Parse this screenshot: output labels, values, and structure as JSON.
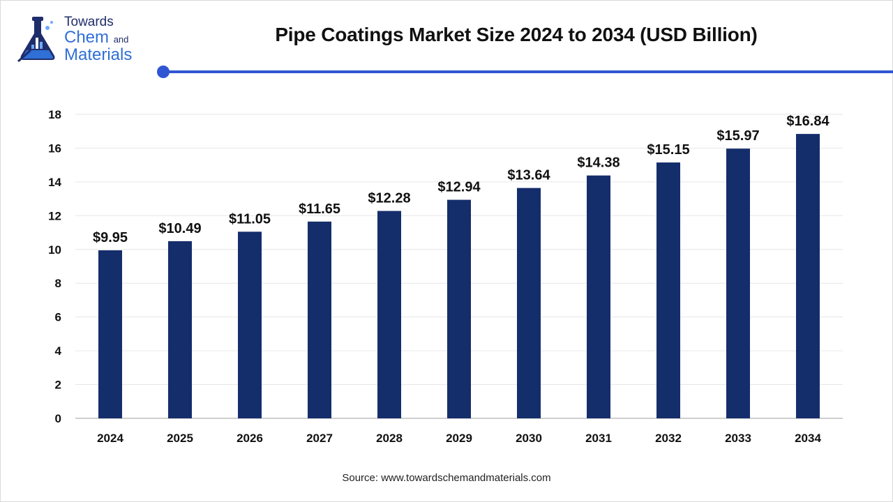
{
  "brand": {
    "line1": "Towards",
    "line2": "Chem",
    "line2_suffix": "and",
    "line3": "Materials",
    "accent_color": "#3056d3",
    "icon": "flask-icon"
  },
  "chart_data": {
    "type": "bar",
    "title": "Pipe Coatings Market Size 2024 to 2034 (USD Billion)",
    "categories": [
      "2024",
      "2025",
      "2026",
      "2027",
      "2028",
      "2029",
      "2030",
      "2031",
      "2032",
      "2033",
      "2034"
    ],
    "values": [
      9.95,
      10.49,
      11.05,
      11.65,
      12.28,
      12.94,
      13.64,
      14.38,
      15.15,
      15.97,
      16.84
    ],
    "data_labels": [
      "$9.95",
      "$10.49",
      "$11.05",
      "$11.65",
      "$12.28",
      "$12.94",
      "$13.64",
      "$14.38",
      "$15.15",
      "$15.97",
      "$16.84"
    ],
    "ylim": [
      0,
      18
    ],
    "yticks": [
      0,
      2,
      4,
      6,
      8,
      10,
      12,
      14,
      16,
      18
    ],
    "xlabel": "",
    "ylabel": "",
    "grid": true,
    "bar_color": "#142d6b"
  },
  "source": "Source: www.towardschemandmaterials.com"
}
